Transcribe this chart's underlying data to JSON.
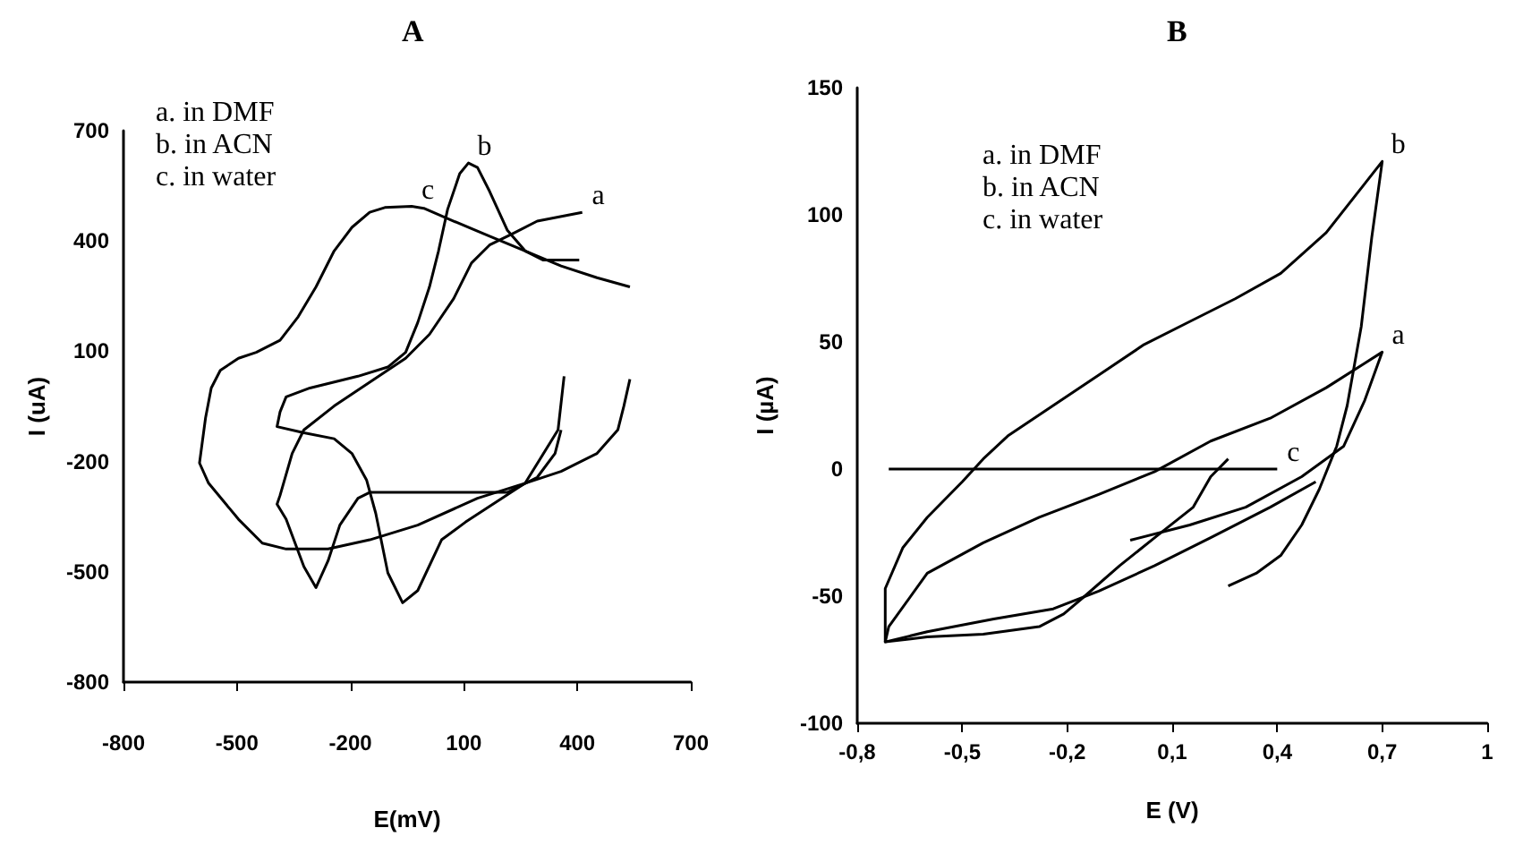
{
  "chart_data": [
    {
      "type": "line",
      "title": "A",
      "xlabel": "E(mV)",
      "ylabel": "I (uA)",
      "xlim": [
        -800,
        700
      ],
      "xticks": [
        -800,
        -500,
        -200,
        100,
        400,
        700
      ],
      "ylim": [
        -800,
        700
      ],
      "yticks": [
        -800,
        -500,
        -200,
        100,
        400,
        700
      ],
      "grid": false,
      "legend": false,
      "marker": "none",
      "series": [
        {
          "name": "a",
          "color": "#000000",
          "x": [
            357,
            341,
            294,
            215,
            57,
            -149,
            -180,
            -228,
            -259,
            -291,
            -323,
            -370,
            -394,
            -386,
            -354,
            -323,
            -243,
            -149,
            -54,
            9,
            73,
            120,
            168,
            231,
            294,
            413
          ],
          "values": [
            -114,
            -178,
            -243,
            -284,
            -284,
            -284,
            -300,
            -373,
            -470,
            -543,
            -486,
            -357,
            -316,
            -292,
            -178,
            -114,
            -49,
            16,
            81,
            146,
            243,
            340,
            389,
            421,
            454,
            478
          ]
        },
        {
          "name": "b",
          "color": "#000000",
          "x": [
            365,
            349,
            262,
            104,
            41,
            -22,
            -62,
            -101,
            -133,
            -157,
            -196,
            -243,
            -323,
            -394,
            -386,
            -370,
            -307,
            -180,
            -101,
            -54,
            -22,
            9,
            33,
            57,
            89,
            112,
            136,
            168,
            215,
            262,
            310,
            405
          ],
          "values": [
            32,
            -114,
            -259,
            -365,
            -413,
            -551,
            -584,
            -503,
            -341,
            -251,
            -178,
            -138,
            -122,
            -105,
            -65,
            -24,
            0,
            32,
            57,
            97,
            178,
            275,
            373,
            486,
            583,
            612,
            600,
            535,
            429,
            373,
            348,
            348
          ]
        },
        {
          "name": "c",
          "color": "#000000",
          "x": [
            539,
            452,
            357,
            262,
            168,
            73,
            -6,
            -38,
            -109,
            -149,
            -196,
            -243,
            -291,
            -338,
            -386,
            -449,
            -496,
            -544,
            -568,
            -583,
            -599,
            -575,
            -496,
            -433,
            -370,
            -259,
            -149,
            -22,
            136,
            262,
            357,
            452,
            507,
            523,
            539
          ],
          "values": [
            275,
            300,
            332,
            373,
            413,
            454,
            489,
            494,
            491,
            478,
            437,
            373,
            275,
            194,
            130,
            97,
            81,
            48,
            0,
            -81,
            -204,
            -259,
            -357,
            -422,
            -438,
            -438,
            -413,
            -373,
            -300,
            -259,
            -227,
            -178,
            -114,
            -49,
            24
          ]
        }
      ],
      "annotations": [
        "a. in DMF",
        "b. in ACN",
        "c. in water"
      ]
    },
    {
      "type": "line",
      "title": "B",
      "xlabel": "E (V)",
      "ylabel": "I (µA)",
      "xlim": [
        -0.8,
        1
      ],
      "xticks": [
        {
          "value": -0.8,
          "label": "-0,8"
        },
        {
          "value": -0.5,
          "label": "-0,5"
        },
        {
          "value": -0.2,
          "label": "-0,2"
        },
        {
          "value": 0.1,
          "label": "0,1"
        },
        {
          "value": 0.4,
          "label": "0,4"
        },
        {
          "value": 0.7,
          "label": "0,7"
        },
        1
      ],
      "ylim": [
        -100,
        150
      ],
      "yticks": [
        -100,
        -50,
        0,
        50,
        100,
        150
      ],
      "grid": false,
      "legend": false,
      "marker": "none",
      "series": [
        {
          "name": "a",
          "color": "#000000",
          "x": [
            -0.02,
            0.15,
            0.31,
            0.47,
            0.59,
            0.65,
            0.7,
            0.54,
            0.38,
            0.21,
            0.05,
            -0.11,
            -0.28,
            -0.44,
            -0.6,
            -0.71,
            -0.72,
            -0.6,
            -0.41,
            -0.24,
            -0.11,
            0.05,
            0.21,
            0.38,
            0.51
          ],
          "values": [
            -28,
            -22,
            -15,
            -3,
            9,
            27,
            46,
            32,
            20,
            11,
            -1,
            -10,
            -19,
            -29,
            -41,
            -62,
            -68,
            -64,
            -59,
            -55,
            -48,
            -38,
            -27,
            -15,
            -5
          ]
        },
        {
          "name": "b",
          "color": "#000000",
          "x": [
            0.26,
            0.34,
            0.41,
            0.47,
            0.52,
            0.57,
            0.6,
            0.64,
            0.67,
            0.7,
            0.54,
            0.41,
            0.28,
            0.15,
            0.02,
            -0.11,
            -0.24,
            -0.37,
            -0.44,
            -0.5,
            -0.6,
            -0.67,
            -0.72,
            -0.72,
            -0.6,
            -0.44,
            -0.28,
            -0.21,
            -0.15,
            -0.05,
            0.05,
            0.16,
            0.21,
            0.26
          ],
          "values": [
            -46,
            -41,
            -34,
            -22,
            -8,
            9,
            25,
            56,
            91,
            121,
            93,
            77,
            67,
            58,
            49,
            37,
            25,
            13,
            4,
            -5,
            -19,
            -31,
            -47,
            -68,
            -66,
            -65,
            -62,
            -57,
            -50,
            -38,
            -27,
            -15,
            -3,
            4
          ]
        },
        {
          "name": "c",
          "color": "#000000",
          "x": [
            -0.71,
            0.4
          ],
          "values": [
            0,
            0
          ]
        }
      ],
      "annotations": [
        "a. in DMF",
        "b. in ACN",
        "c. in water"
      ]
    }
  ]
}
